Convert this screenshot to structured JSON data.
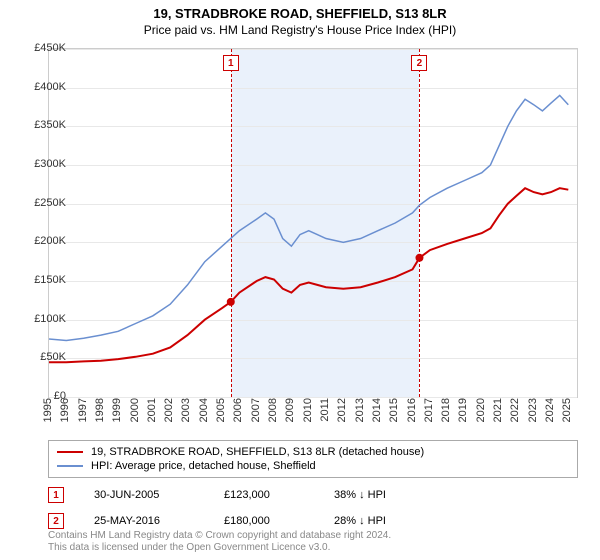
{
  "title": "19, STRADBROKE ROAD, SHEFFIELD, S13 8LR",
  "subtitle": "Price paid vs. HM Land Registry's House Price Index (HPI)",
  "chart": {
    "type": "line",
    "background_color": "#ffffff",
    "grid_color": "#e8e8e8",
    "border_color": "#cccccc",
    "shade_color": "#eaf1fb",
    "x_min": 1995,
    "x_max": 2025.5,
    "y_min": 0,
    "y_max": 450,
    "y_ticks": [
      0,
      50,
      100,
      150,
      200,
      250,
      300,
      350,
      400,
      450
    ],
    "y_tick_labels": [
      "£0",
      "£50K",
      "£100K",
      "£150K",
      "£200K",
      "£250K",
      "£300K",
      "£350K",
      "£400K",
      "£450K"
    ],
    "x_ticks": [
      1995,
      1996,
      1997,
      1998,
      1999,
      2000,
      2001,
      2002,
      2003,
      2004,
      2005,
      2006,
      2007,
      2008,
      2009,
      2010,
      2011,
      2012,
      2013,
      2014,
      2015,
      2016,
      2017,
      2018,
      2019,
      2020,
      2021,
      2022,
      2023,
      2024,
      2025
    ],
    "label_fontsize": 11,
    "shade_start": 2005.5,
    "shade_end": 2016.4,
    "series": [
      {
        "name": "price_paid",
        "color": "#cc0000",
        "width": 2,
        "points": [
          [
            1995,
            45
          ],
          [
            1996,
            45
          ],
          [
            1997,
            46
          ],
          [
            1998,
            47
          ],
          [
            1999,
            49
          ],
          [
            2000,
            52
          ],
          [
            2001,
            56
          ],
          [
            2002,
            64
          ],
          [
            2003,
            80
          ],
          [
            2004,
            100
          ],
          [
            2005,
            115
          ],
          [
            2005.5,
            123
          ],
          [
            2006,
            135
          ],
          [
            2007,
            150
          ],
          [
            2007.5,
            155
          ],
          [
            2008,
            152
          ],
          [
            2008.5,
            140
          ],
          [
            2009,
            135
          ],
          [
            2009.5,
            145
          ],
          [
            2010,
            148
          ],
          [
            2010.5,
            145
          ],
          [
            2011,
            142
          ],
          [
            2012,
            140
          ],
          [
            2013,
            142
          ],
          [
            2014,
            148
          ],
          [
            2015,
            155
          ],
          [
            2016,
            165
          ],
          [
            2016.4,
            180
          ],
          [
            2017,
            190
          ],
          [
            2018,
            198
          ],
          [
            2019,
            205
          ],
          [
            2020,
            212
          ],
          [
            2020.5,
            218
          ],
          [
            2021,
            235
          ],
          [
            2021.5,
            250
          ],
          [
            2022,
            260
          ],
          [
            2022.5,
            270
          ],
          [
            2023,
            265
          ],
          [
            2023.5,
            262
          ],
          [
            2024,
            265
          ],
          [
            2024.5,
            270
          ],
          [
            2025,
            268
          ]
        ]
      },
      {
        "name": "hpi",
        "color": "#6a8fd0",
        "width": 1.5,
        "points": [
          [
            1995,
            75
          ],
          [
            1996,
            73
          ],
          [
            1997,
            76
          ],
          [
            1998,
            80
          ],
          [
            1999,
            85
          ],
          [
            2000,
            95
          ],
          [
            2001,
            105
          ],
          [
            2002,
            120
          ],
          [
            2003,
            145
          ],
          [
            2004,
            175
          ],
          [
            2005,
            195
          ],
          [
            2006,
            215
          ],
          [
            2007,
            230
          ],
          [
            2007.5,
            238
          ],
          [
            2008,
            230
          ],
          [
            2008.5,
            205
          ],
          [
            2009,
            195
          ],
          [
            2009.5,
            210
          ],
          [
            2010,
            215
          ],
          [
            2010.5,
            210
          ],
          [
            2011,
            205
          ],
          [
            2012,
            200
          ],
          [
            2013,
            205
          ],
          [
            2014,
            215
          ],
          [
            2015,
            225
          ],
          [
            2016,
            238
          ],
          [
            2016.4,
            248
          ],
          [
            2017,
            258
          ],
          [
            2018,
            270
          ],
          [
            2019,
            280
          ],
          [
            2020,
            290
          ],
          [
            2020.5,
            300
          ],
          [
            2021,
            325
          ],
          [
            2021.5,
            350
          ],
          [
            2022,
            370
          ],
          [
            2022.5,
            385
          ],
          [
            2023,
            378
          ],
          [
            2023.5,
            370
          ],
          [
            2024,
            380
          ],
          [
            2024.5,
            390
          ],
          [
            2025,
            378
          ]
        ]
      }
    ],
    "sale_markers": [
      {
        "n": "1",
        "x": 2005.5,
        "y": 123,
        "color": "#cc0000"
      },
      {
        "n": "2",
        "x": 2016.4,
        "y": 180,
        "color": "#cc0000"
      }
    ]
  },
  "legend": {
    "items": [
      {
        "color": "#cc0000",
        "label": "19, STRADBROKE ROAD, SHEFFIELD, S13 8LR (detached house)"
      },
      {
        "color": "#6a8fd0",
        "label": "HPI: Average price, detached house, Sheffield"
      }
    ]
  },
  "sales": [
    {
      "n": "1",
      "color": "#cc0000",
      "date": "30-JUN-2005",
      "price": "£123,000",
      "hpi": "38% ↓ HPI"
    },
    {
      "n": "2",
      "color": "#cc0000",
      "date": "25-MAY-2016",
      "price": "£180,000",
      "hpi": "28% ↓ HPI"
    }
  ],
  "footnote_line1": "Contains HM Land Registry data © Crown copyright and database right 2024.",
  "footnote_line2": "This data is licensed under the Open Government Licence v3.0."
}
